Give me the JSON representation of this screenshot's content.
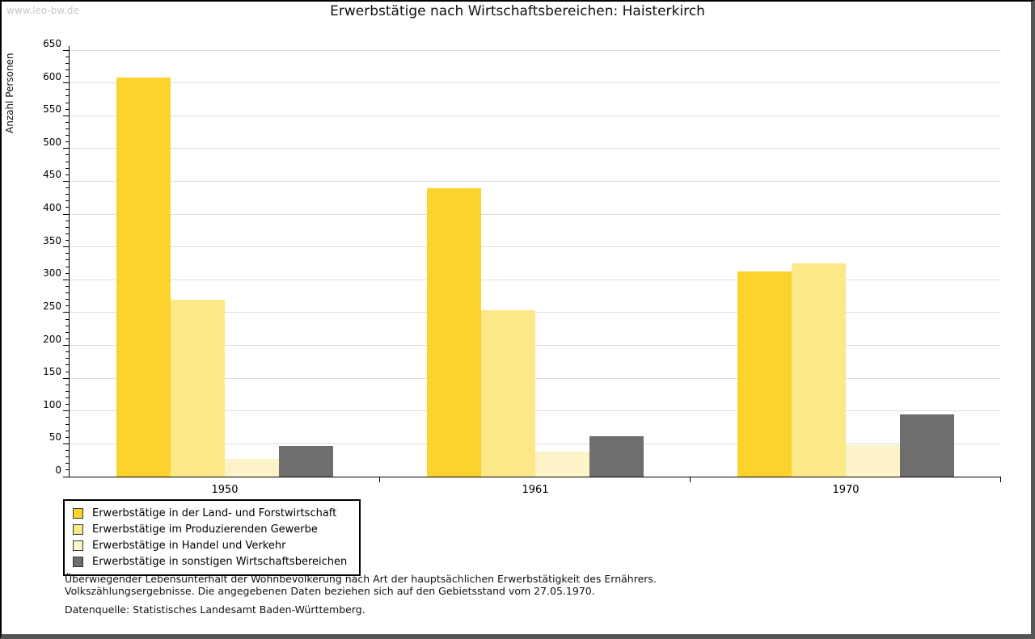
{
  "watermark": "www.leo-bw.de",
  "title": "Erwerbstätige nach Wirtschaftsbereichen: Haisterkirch",
  "chart_data": {
    "type": "bar",
    "categories": [
      "1950",
      "1961",
      "1970"
    ],
    "series": [
      {
        "name": "Erwerbstätige in der Land- und Forstwirtschaft",
        "color": "#FCD32D",
        "values": [
          608,
          440,
          313
        ]
      },
      {
        "name": "Erwerbstätige im Produzierenden Gewerbe",
        "color": "#FCE886",
        "values": [
          270,
          254,
          325
        ]
      },
      {
        "name": "Erwerbstätige in Handel und Verkehr",
        "color": "#FCF3C8",
        "values": [
          27,
          38,
          48
        ]
      },
      {
        "name": "Erwerbstätige in sonstigen Wirtschaftsbereichen",
        "color": "#6E6E6E",
        "values": [
          47,
          61,
          95
        ]
      }
    ],
    "title": "Erwerbstätige nach Wirtschaftsbereichen: Haisterkirch",
    "xlabel": "",
    "ylabel": "Anzahl Personen",
    "ylim": [
      0,
      650
    ],
    "ytick_step": 50,
    "minor_tick_step": 10,
    "grid": true,
    "legend_position": "bottom-left"
  },
  "footer": {
    "note_line1": "Überwiegender Lebensunterhalt der Wohnbevölkerung nach Art der hauptsächlichen Erwerbstätigkeit des Ernährers.",
    "note_line2": "Volkszählungsergebnisse. Die angegebenen Daten beziehen sich auf den Gebietsstand vom 27.05.1970.",
    "source": "Datenquelle: Statistisches Landesamt Baden-Württemberg."
  },
  "colors": {
    "gridline": "#DDDDDD",
    "axis": "#000000",
    "watermark_text": "#C8C8C8",
    "frame_shadow": "#555555"
  }
}
